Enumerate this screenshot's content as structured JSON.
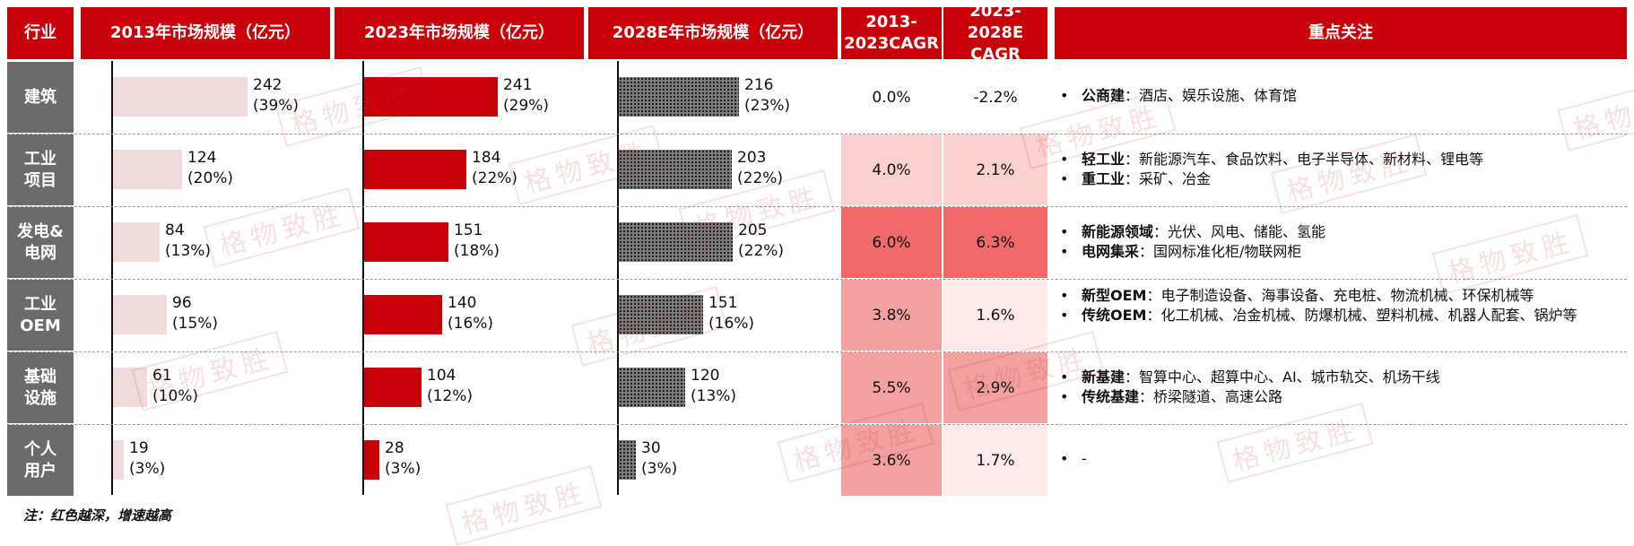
{
  "headers": {
    "industry": "行业",
    "y2013": "2013年市场规模（亿元）",
    "y2023": "2023年市场规模（亿元）",
    "y2028": "2028E年市场规模（亿元）",
    "cagr1": [
      "2013-",
      "2023CAGR"
    ],
    "cagr2": [
      "2023-2028E",
      "CAGR"
    ],
    "focus": "重点关注"
  },
  "chart_data": {
    "type": "bar",
    "categories": [
      "建筑",
      "工业项目",
      "发电&电网",
      "工业OEM",
      "基础设施",
      "个人用户"
    ],
    "category_lines": [
      [
        "建筑"
      ],
      [
        "工业",
        "项目"
      ],
      [
        "发电&",
        "电网"
      ],
      [
        "工业",
        "OEM"
      ],
      [
        "基础",
        "设施"
      ],
      [
        "个人",
        "用户"
      ]
    ],
    "series": [
      {
        "name": "2013年市场规模（亿元）",
        "values": [
          242,
          124,
          84,
          96,
          61,
          19
        ],
        "shares": [
          "(39%)",
          "(20%)",
          "(13%)",
          "(15%)",
          "(10%)",
          "(3%)"
        ]
      },
      {
        "name": "2023年市场规模（亿元）",
        "values": [
          241,
          184,
          151,
          140,
          104,
          28
        ],
        "shares": [
          "(29%)",
          "(22%)",
          "(18%)",
          "(16%)",
          "(12%)",
          "(3%)"
        ]
      },
      {
        "name": "2028E年市场规模（亿元）",
        "values": [
          216,
          203,
          205,
          151,
          120,
          30
        ],
        "shares": [
          "(23%)",
          "(22%)",
          "(22%)",
          "(16%)",
          "(13%)",
          "(3%)"
        ]
      }
    ],
    "cagr_2013_2023": [
      "0.0%",
      "4.0%",
      "6.0%",
      "3.8%",
      "5.5%",
      "3.6%"
    ],
    "cagr_2023_2028": [
      "-2.2%",
      "2.1%",
      "6.3%",
      "1.6%",
      "2.9%",
      "1.7%"
    ],
    "colors": {
      "s2013": "#f0dcdc",
      "s2023": "#c8000a",
      "s2028": "#7c7c7c"
    }
  },
  "focus": [
    [
      {
        "bold": "公商建",
        "text": "：酒店、娱乐设施、体育馆"
      }
    ],
    [
      {
        "bold": "轻工业",
        "text": "：新能源汽车、食品饮料、电子半导体、新材料、锂电等"
      },
      {
        "bold": "重工业",
        "text": "：采矿、冶金"
      }
    ],
    [
      {
        "bold": "新能源领域",
        "text": "：光伏、风电、储能、氢能"
      },
      {
        "bold": "电网集采",
        "text": "：国网标准化柜/物联网柜"
      }
    ],
    [
      {
        "bold": "新型OEM",
        "text": "：电子制造设备、海事设备、充电桩、物流机械、环保机械等"
      },
      {
        "bold": "传统OEM",
        "text": "：化工机械、冶金机械、防爆机械、塑料机械、机器人配套、锅炉等"
      }
    ],
    [
      {
        "bold": "新基建",
        "text": "：智算中心、超算中心、AI、城市轨交、机场干线"
      },
      {
        "bold": "传统基建",
        "text": "：桥梁隧道、高速公路"
      }
    ],
    [
      {
        "bold": "",
        "text": "-"
      }
    ]
  ],
  "note": "注：红色越深，增速越高",
  "watermark": "格物致胜"
}
